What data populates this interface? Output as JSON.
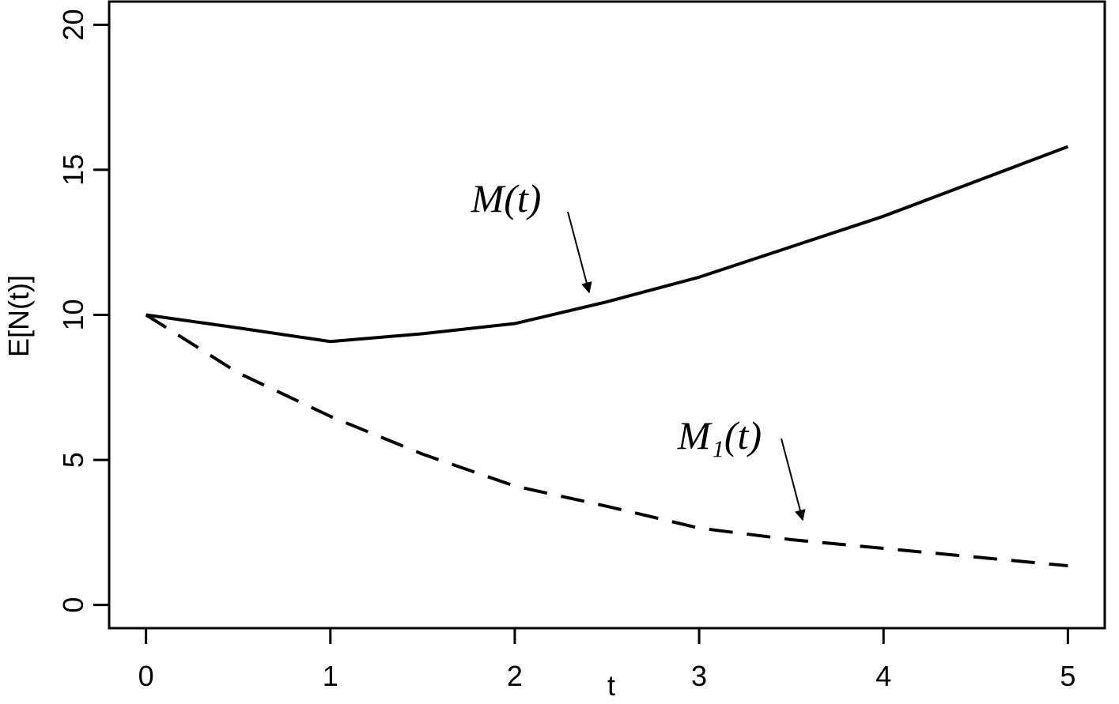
{
  "chart_data": {
    "type": "line",
    "x": [
      0,
      0.5,
      1,
      1.5,
      2,
      2.5,
      3,
      3.5,
      4,
      4.5,
      5
    ],
    "series": [
      {
        "name": "M(t)",
        "color": "#000000",
        "style": "solid",
        "values": [
          10,
          9.55,
          9.08,
          9.35,
          9.7,
          10.45,
          11.3,
          12.35,
          13.4,
          14.6,
          15.8
        ]
      },
      {
        "name": "M₁(t)",
        "color": "#000000",
        "style": "dashed",
        "values": [
          10,
          8.0,
          6.5,
          5.2,
          4.1,
          3.4,
          2.65,
          2.25,
          1.95,
          1.65,
          1.35
        ]
      }
    ],
    "xlabel": "t",
    "ylabel": "E[N(t)]",
    "xlim": [
      -0.2,
      5.2
    ],
    "ylim": [
      -0.8,
      20.8
    ],
    "xticks": [
      0,
      1,
      2,
      3,
      4,
      5
    ],
    "yticks": [
      0,
      5,
      10,
      15,
      20
    ],
    "grid": false
  }
}
